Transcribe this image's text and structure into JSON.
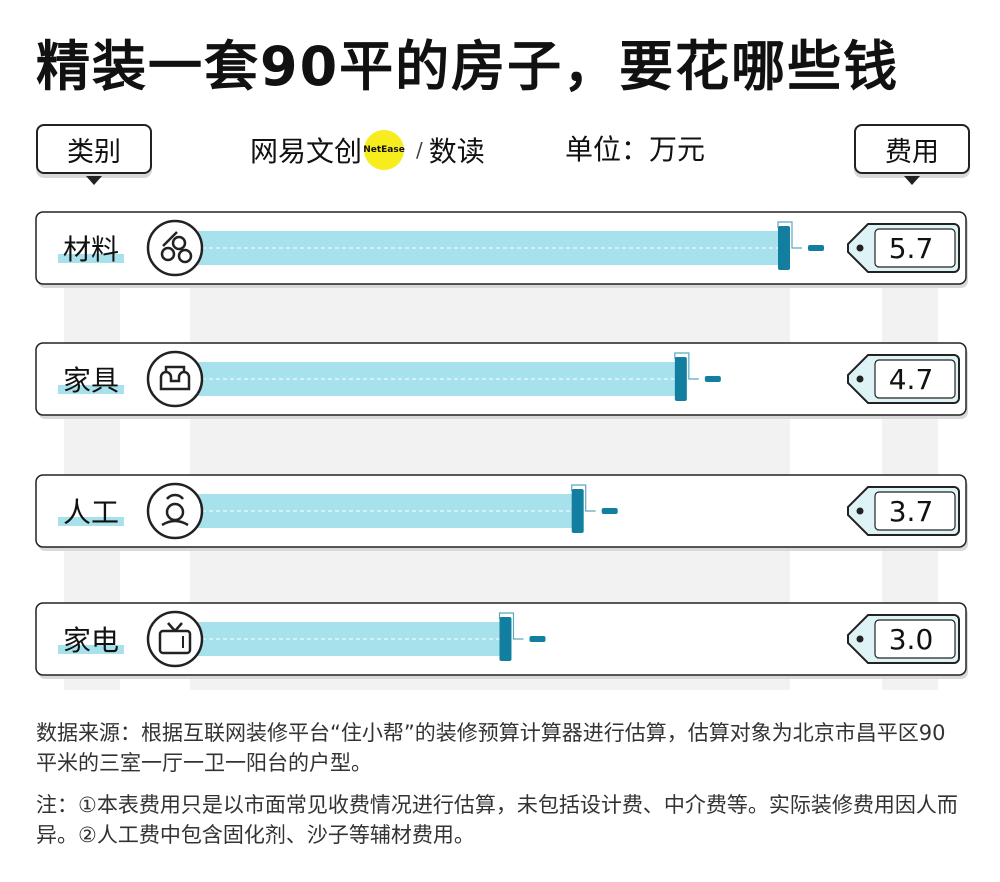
{
  "title": "精装一套90平的房子，要花哪些钱",
  "header": {
    "category_label": "类别",
    "cost_label": "费用",
    "unit": "单位：万元",
    "brand": {
      "left": "网易文创",
      "dot": "NetEase",
      "slash": "/",
      "right": "数读"
    }
  },
  "chart_data": {
    "type": "bar",
    "orientation": "horizontal",
    "categories": [
      "材料",
      "家具",
      "人工",
      "家电"
    ],
    "values": [
      5.7,
      4.7,
      3.7,
      3.0
    ],
    "value_labels": [
      "5.7",
      "4.7",
      "3.7",
      "3.0"
    ],
    "icons": [
      "pipes-icon",
      "sofa-icon",
      "worker-icon",
      "tv-icon"
    ],
    "xlim": [
      0,
      5.7
    ],
    "grid": false,
    "colors": {
      "bar": "#a7e2ec",
      "roller": "#137fa0",
      "label_bg": "#ddf3f6"
    }
  },
  "notes": {
    "source": "数据来源：根据互联网装修平台“住小帮”的装修预算计算器进行估算，估算对象为北京市昌平区90平米的三室一厅一卫一阳台的户型。",
    "note": "注：①本表费用只是以市面常见收费情况进行估算，未包括设计费、中介费等。实际装修费用因人而异。②人工费中包含固化剂、沙子等辅材费用。"
  }
}
